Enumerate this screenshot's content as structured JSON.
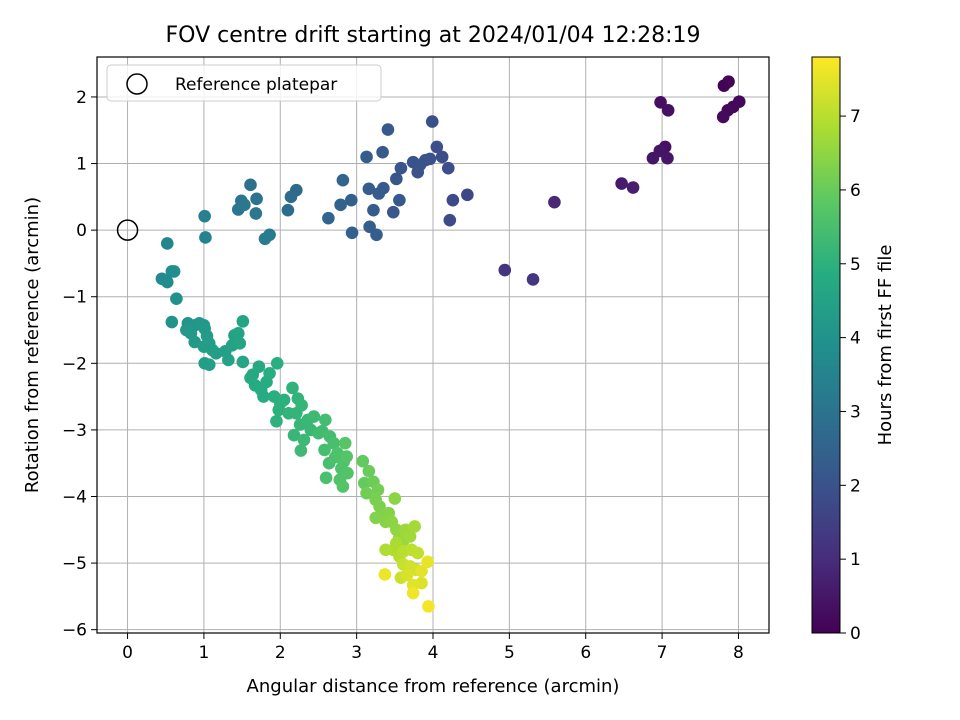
{
  "chart_data": {
    "type": "scatter",
    "title": "FOV centre drift starting at 2024/01/04 12:28:19",
    "xlabel": "Angular distance from reference (arcmin)",
    "ylabel": "Rotation from reference (arcmin)",
    "colorbar_label": "Hours from first FF file",
    "xlim": [
      -0.4,
      8.4
    ],
    "ylim": [
      -6.05,
      2.6
    ],
    "clim": [
      0,
      7.8
    ],
    "colormap": "viridis",
    "grid": true,
    "legend_position": "top-left",
    "xticks": [
      0,
      1,
      2,
      3,
      4,
      5,
      6,
      7,
      8
    ],
    "yticks": [
      -6,
      -5,
      -4,
      -3,
      -2,
      -1,
      0,
      1,
      2
    ],
    "cticks": [
      0,
      1,
      2,
      3,
      4,
      5,
      6,
      7
    ],
    "reference": {
      "label": "Reference platepar",
      "x": 0,
      "y": 0
    },
    "points": [
      [
        7.81,
        2.17,
        0.05
      ],
      [
        7.87,
        2.23,
        0.08
      ],
      [
        7.93,
        1.85,
        0.12
      ],
      [
        8.01,
        1.93,
        0.15
      ],
      [
        7.86,
        1.8,
        0.18
      ],
      [
        7.8,
        1.7,
        0.21
      ],
      [
        6.98,
        1.92,
        0.3
      ],
      [
        7.08,
        1.8,
        0.33
      ],
      [
        7.04,
        1.25,
        0.38
      ],
      [
        6.97,
        1.19,
        0.42
      ],
      [
        6.88,
        1.08,
        0.45
      ],
      [
        7.07,
        1.08,
        0.48
      ],
      [
        6.47,
        0.7,
        0.6
      ],
      [
        6.62,
        0.64,
        0.65
      ],
      [
        5.59,
        0.42,
        0.9
      ],
      [
        4.94,
        -0.6,
        1.2
      ],
      [
        5.31,
        -0.74,
        1.25
      ],
      [
        4.45,
        0.53,
        1.7
      ],
      [
        4.26,
        0.45,
        1.75
      ],
      [
        4.22,
        0.15,
        1.8
      ],
      [
        4.2,
        0.93,
        1.85
      ],
      [
        4.12,
        1.1,
        1.88
      ],
      [
        4.05,
        1.25,
        1.9
      ],
      [
        3.99,
        1.63,
        1.93
      ],
      [
        3.96,
        1.07,
        1.96
      ],
      [
        3.9,
        1.05,
        1.98
      ],
      [
        3.83,
        0.98,
        2.0
      ],
      [
        3.8,
        0.87,
        2.02
      ],
      [
        3.74,
        1.02,
        2.05
      ],
      [
        3.58,
        0.93,
        2.08
      ],
      [
        3.52,
        0.77,
        2.1
      ],
      [
        3.56,
        0.45,
        2.12
      ],
      [
        3.48,
        0.27,
        2.15
      ],
      [
        3.41,
        1.51,
        2.18
      ],
      [
        3.34,
        1.17,
        2.2
      ],
      [
        3.35,
        0.63,
        2.22
      ],
      [
        3.29,
        0.55,
        2.25
      ],
      [
        3.16,
        0.62,
        2.28
      ],
      [
        3.22,
        0.3,
        2.3
      ],
      [
        3.13,
        1.1,
        2.32
      ],
      [
        3.17,
        0.05,
        2.35
      ],
      [
        3.26,
        -0.07,
        2.38
      ],
      [
        2.93,
        0.45,
        2.42
      ],
      [
        2.94,
        -0.04,
        2.45
      ],
      [
        2.79,
        0.38,
        2.5
      ],
      [
        2.82,
        0.75,
        2.52
      ],
      [
        2.63,
        0.18,
        2.55
      ],
      [
        2.21,
        0.6,
        2.7
      ],
      [
        2.14,
        0.5,
        2.75
      ],
      [
        2.1,
        0.3,
        2.78
      ],
      [
        1.61,
        0.68,
        2.95
      ],
      [
        1.69,
        0.47,
        3.0
      ],
      [
        1.49,
        0.44,
        3.05
      ],
      [
        1.45,
        0.31,
        3.08
      ],
      [
        1.53,
        0.38,
        3.1
      ],
      [
        1.68,
        0.25,
        3.12
      ],
      [
        1.86,
        -0.07,
        3.25
      ],
      [
        1.8,
        -0.13,
        3.28
      ],
      [
        1.01,
        0.21,
        3.4
      ],
      [
        1.02,
        -0.11,
        3.45
      ],
      [
        0.52,
        -0.2,
        3.6
      ],
      [
        0.45,
        -0.73,
        3.75
      ],
      [
        0.52,
        -0.78,
        3.78
      ],
      [
        0.58,
        -0.62,
        3.82
      ],
      [
        0.61,
        -0.62,
        3.85
      ],
      [
        0.64,
        -1.03,
        3.95
      ],
      [
        0.58,
        -1.38,
        4.0
      ],
      [
        0.79,
        -1.4,
        4.05
      ],
      [
        0.88,
        -1.43,
        4.1
      ],
      [
        0.94,
        -1.4,
        4.12
      ],
      [
        1.0,
        -1.43,
        4.15
      ],
      [
        0.77,
        -1.5,
        4.18
      ],
      [
        0.83,
        -1.55,
        4.2
      ],
      [
        0.88,
        -1.68,
        4.22
      ],
      [
        1.01,
        -1.48,
        4.25
      ],
      [
        1.04,
        -1.59,
        4.28
      ],
      [
        1.0,
        -1.75,
        4.3
      ],
      [
        1.07,
        -1.7,
        4.32
      ],
      [
        1.11,
        -1.8,
        4.35
      ],
      [
        1.16,
        -1.85,
        4.38
      ],
      [
        1.01,
        -2.0,
        4.4
      ],
      [
        1.07,
        -2.02,
        4.42
      ],
      [
        1.28,
        -1.82,
        4.45
      ],
      [
        1.32,
        -1.95,
        4.48
      ],
      [
        1.37,
        -1.73,
        4.5
      ],
      [
        1.4,
        -1.58,
        4.52
      ],
      [
        1.45,
        -1.55,
        4.55
      ],
      [
        1.51,
        -1.37,
        4.58
      ],
      [
        1.47,
        -1.7,
        4.6
      ],
      [
        1.51,
        -1.98,
        4.65
      ],
      [
        1.64,
        -2.17,
        4.7
      ],
      [
        1.61,
        -2.22,
        4.72
      ],
      [
        1.72,
        -2.05,
        4.75
      ],
      [
        1.67,
        -2.33,
        4.78
      ],
      [
        1.75,
        -2.4,
        4.8
      ],
      [
        1.78,
        -2.5,
        4.82
      ],
      [
        1.82,
        -2.28,
        4.85
      ],
      [
        1.86,
        -2.15,
        4.88
      ],
      [
        1.96,
        -2.0,
        4.9
      ],
      [
        1.92,
        -2.5,
        4.92
      ],
      [
        2.0,
        -2.6,
        4.95
      ],
      [
        2.05,
        -2.55,
        4.98
      ],
      [
        1.98,
        -2.7,
        5.0
      ],
      [
        1.95,
        -2.87,
        5.02
      ],
      [
        2.16,
        -2.37,
        5.05
      ],
      [
        2.11,
        -2.75,
        5.08
      ],
      [
        2.23,
        -2.53,
        5.1
      ],
      [
        2.21,
        -2.75,
        5.12
      ],
      [
        2.28,
        -2.63,
        5.15
      ],
      [
        2.18,
        -3.08,
        5.18
      ],
      [
        2.26,
        -2.92,
        5.2
      ],
      [
        2.36,
        -2.85,
        5.22
      ],
      [
        2.4,
        -3.0,
        5.25
      ],
      [
        2.31,
        -3.15,
        5.28
      ],
      [
        2.44,
        -2.8,
        5.3
      ],
      [
        2.27,
        -3.31,
        5.32
      ],
      [
        2.5,
        -3.05,
        5.35
      ],
      [
        2.55,
        -3.02,
        5.38
      ],
      [
        2.59,
        -2.85,
        5.4
      ],
      [
        2.65,
        -3.1,
        5.42
      ],
      [
        2.58,
        -3.3,
        5.45
      ],
      [
        2.7,
        -3.2,
        5.48
      ],
      [
        2.64,
        -3.5,
        5.5
      ],
      [
        2.6,
        -3.72,
        5.52
      ],
      [
        2.72,
        -3.41,
        5.55
      ],
      [
        2.75,
        -3.35,
        5.58
      ],
      [
        2.8,
        -3.58,
        5.6
      ],
      [
        2.83,
        -3.48,
        5.62
      ],
      [
        2.78,
        -3.75,
        5.65
      ],
      [
        2.88,
        -3.65,
        5.68
      ],
      [
        2.87,
        -3.4,
        5.7
      ],
      [
        2.82,
        -3.85,
        5.72
      ],
      [
        2.85,
        -3.2,
        5.75
      ],
      [
        3.08,
        -3.47,
        5.9
      ],
      [
        3.1,
        -3.8,
        5.95
      ],
      [
        3.16,
        -3.62,
        6.0
      ],
      [
        3.22,
        -3.78,
        6.05
      ],
      [
        3.13,
        -3.95,
        6.1
      ],
      [
        3.28,
        -3.9,
        6.15
      ],
      [
        3.25,
        -4.05,
        6.2
      ],
      [
        3.3,
        -4.15,
        6.25
      ],
      [
        3.34,
        -4.3,
        6.3
      ],
      [
        3.25,
        -4.32,
        6.32
      ],
      [
        3.42,
        -4.25,
        6.35
      ],
      [
        3.38,
        -4.38,
        6.38
      ],
      [
        3.5,
        -4.03,
        6.42
      ],
      [
        3.46,
        -4.38,
        6.45
      ],
      [
        3.52,
        -4.5,
        6.5
      ],
      [
        3.56,
        -4.61,
        6.55
      ],
      [
        3.62,
        -4.65,
        6.6
      ],
      [
        3.64,
        -4.5,
        6.65
      ],
      [
        3.7,
        -4.6,
        6.7
      ],
      [
        3.76,
        -4.45,
        6.75
      ],
      [
        3.52,
        -4.7,
        6.8
      ],
      [
        3.48,
        -4.8,
        6.85
      ],
      [
        3.38,
        -4.8,
        6.9
      ],
      [
        3.56,
        -4.9,
        6.95
      ],
      [
        3.62,
        -4.82,
        7.0
      ],
      [
        3.72,
        -4.8,
        7.05
      ],
      [
        3.8,
        -4.85,
        7.1
      ],
      [
        3.61,
        -5.02,
        7.15
      ],
      [
        3.58,
        -5.22,
        7.2
      ],
      [
        3.7,
        -5.05,
        7.25
      ],
      [
        3.78,
        -5.1,
        7.3
      ],
      [
        3.66,
        -5.18,
        7.35
      ],
      [
        3.85,
        -5.3,
        7.4
      ],
      [
        3.74,
        -5.33,
        7.45
      ],
      [
        3.85,
        -5.12,
        7.5
      ],
      [
        3.93,
        -4.98,
        7.55
      ],
      [
        3.37,
        -5.17,
        7.6
      ],
      [
        3.74,
        -5.45,
        7.65
      ],
      [
        3.94,
        -5.65,
        7.7
      ]
    ]
  }
}
